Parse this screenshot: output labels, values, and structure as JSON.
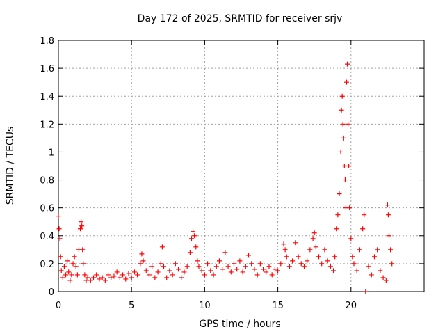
{
  "chart_data": {
    "type": "scatter",
    "title": "Day 172 of 2025, SRMTID for receiver srjv",
    "xlabel": "GPS time / hours",
    "ylabel": "SRMTID / TECUs",
    "xlim": [
      0,
      25
    ],
    "ylim": [
      0,
      1.8
    ],
    "x_ticks": [
      0,
      5,
      10,
      15,
      20
    ],
    "x_tick_labels": [
      "0",
      "5",
      "10",
      "15",
      "20"
    ],
    "y_ticks": [
      0,
      0.2,
      0.4,
      0.6,
      0.8,
      1.0,
      1.2,
      1.4,
      1.6,
      1.8
    ],
    "y_tick_labels": [
      "0",
      "0.2",
      "0.4",
      "0.6",
      "0.8",
      "1",
      "1.2",
      "1.4",
      "1.6",
      "1.8"
    ],
    "grid": true,
    "marker": "plus",
    "marker_color": "#ff0000",
    "series": [
      {
        "name": "SRMTID",
        "x": [
          0.0,
          0.05,
          0.1,
          0.15,
          0.2,
          0.3,
          0.4,
          0.5,
          0.6,
          0.7,
          0.8,
          0.9,
          1.0,
          1.1,
          1.2,
          1.3,
          1.4,
          1.5,
          1.55,
          1.6,
          1.65,
          1.7,
          1.8,
          1.9,
          2.0,
          2.2,
          2.4,
          2.6,
          2.8,
          3.0,
          3.2,
          3.4,
          3.6,
          3.8,
          4.0,
          4.2,
          4.4,
          4.6,
          4.8,
          5.0,
          5.2,
          5.4,
          5.6,
          5.7,
          5.8,
          6.0,
          6.2,
          6.4,
          6.6,
          6.8,
          7.0,
          7.1,
          7.2,
          7.4,
          7.6,
          7.8,
          8.0,
          8.2,
          8.4,
          8.6,
          8.8,
          9.0,
          9.1,
          9.2,
          9.3,
          9.4,
          9.5,
          9.6,
          9.8,
          10.0,
          10.2,
          10.4,
          10.6,
          10.8,
          11.0,
          11.2,
          11.4,
          11.6,
          11.8,
          12.0,
          12.2,
          12.4,
          12.6,
          12.8,
          13.0,
          13.2,
          13.4,
          13.6,
          13.8,
          14.0,
          14.2,
          14.4,
          14.6,
          14.8,
          15.0,
          15.2,
          15.4,
          15.5,
          15.6,
          15.8,
          16.0,
          16.2,
          16.4,
          16.6,
          16.8,
          17.0,
          17.2,
          17.4,
          17.5,
          17.6,
          17.8,
          18.0,
          18.2,
          18.4,
          18.6,
          18.8,
          18.9,
          19.0,
          19.1,
          19.2,
          19.3,
          19.35,
          19.4,
          19.45,
          19.5,
          19.55,
          19.6,
          19.65,
          19.7,
          19.75,
          19.8,
          19.85,
          19.9,
          20.0,
          20.1,
          20.2,
          20.4,
          20.6,
          20.8,
          20.9,
          21.0,
          21.2,
          21.4,
          21.6,
          21.8,
          22.0,
          22.2,
          22.4,
          22.5,
          22.55,
          22.6,
          22.7,
          22.8
        ],
        "y": [
          0.54,
          0.45,
          0.38,
          0.25,
          0.15,
          0.1,
          0.18,
          0.12,
          0.22,
          0.14,
          0.08,
          0.12,
          0.2,
          0.25,
          0.18,
          0.12,
          0.3,
          0.45,
          0.5,
          0.47,
          0.3,
          0.2,
          0.12,
          0.08,
          0.1,
          0.08,
          0.1,
          0.12,
          0.09,
          0.1,
          0.08,
          0.12,
          0.1,
          0.11,
          0.14,
          0.1,
          0.12,
          0.09,
          0.13,
          0.1,
          0.14,
          0.12,
          0.2,
          0.27,
          0.22,
          0.15,
          0.12,
          0.18,
          0.1,
          0.14,
          0.2,
          0.32,
          0.18,
          0.1,
          0.15,
          0.12,
          0.2,
          0.16,
          0.1,
          0.14,
          0.18,
          0.28,
          0.38,
          0.43,
          0.4,
          0.32,
          0.22,
          0.18,
          0.15,
          0.12,
          0.2,
          0.15,
          0.12,
          0.18,
          0.22,
          0.16,
          0.28,
          0.18,
          0.14,
          0.2,
          0.16,
          0.22,
          0.14,
          0.18,
          0.26,
          0.2,
          0.16,
          0.12,
          0.2,
          0.16,
          0.14,
          0.18,
          0.12,
          0.16,
          0.15,
          0.2,
          0.34,
          0.3,
          0.25,
          0.18,
          0.22,
          0.35,
          0.25,
          0.2,
          0.18,
          0.22,
          0.3,
          0.38,
          0.42,
          0.32,
          0.25,
          0.2,
          0.3,
          0.22,
          0.18,
          0.15,
          0.25,
          0.45,
          0.55,
          0.7,
          1.0,
          1.3,
          1.4,
          1.2,
          1.1,
          0.9,
          0.8,
          0.6,
          1.5,
          1.63,
          1.2,
          0.9,
          0.6,
          0.38,
          0.25,
          0.2,
          0.15,
          0.3,
          0.45,
          0.55,
          0.0,
          0.18,
          0.12,
          0.25,
          0.3,
          0.15,
          0.1,
          0.08,
          0.62,
          0.55,
          0.4,
          0.3,
          0.2
        ]
      }
    ]
  }
}
